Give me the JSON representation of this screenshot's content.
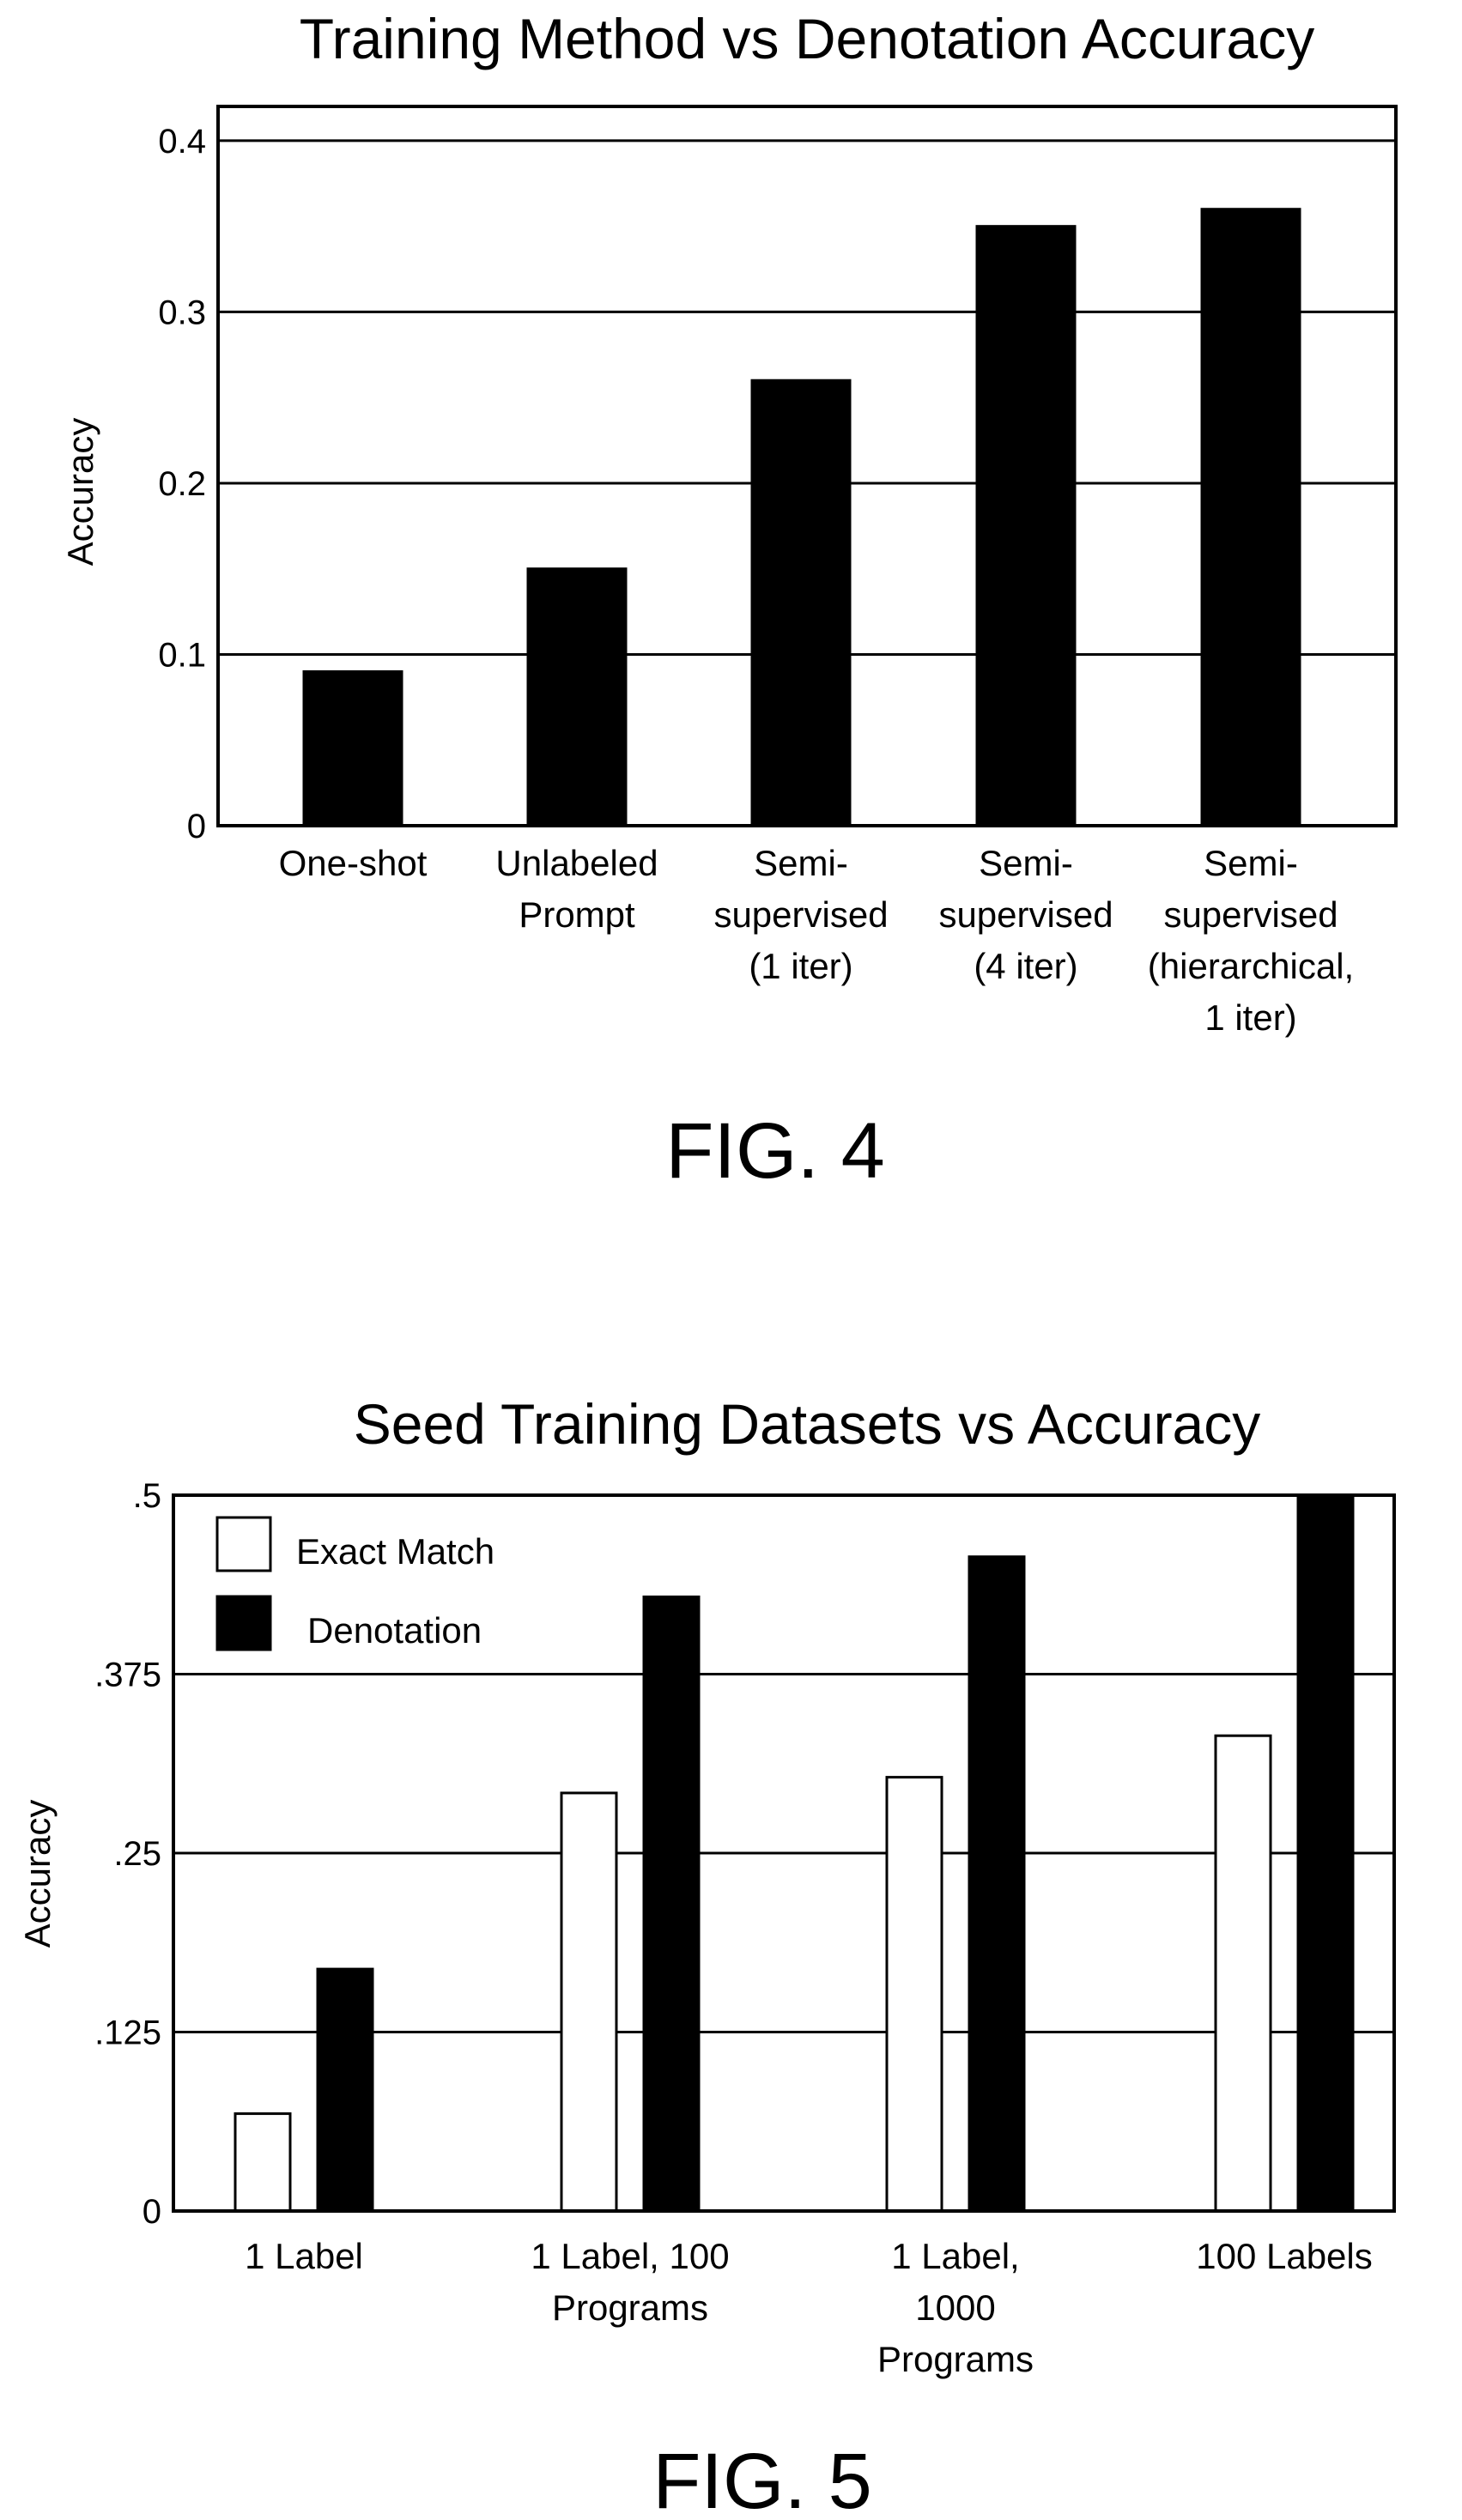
{
  "figures": [
    {
      "caption": "FIG. 4",
      "chart_data": {
        "type": "bar",
        "title": "Training Method vs Denotation Accuracy",
        "xlabel": "",
        "ylabel": "Accuracy",
        "categories": [
          [
            "One-shot"
          ],
          [
            "Unlabeled",
            "Prompt"
          ],
          [
            "Semi-",
            "supervised",
            "(1 iter)"
          ],
          [
            "Semi-",
            "supervised",
            "(4 iter)"
          ],
          [
            "Semi-",
            "supervised",
            "(hierarchical,",
            "1 iter)"
          ]
        ],
        "series": [
          {
            "values": [
              0.09,
              0.15,
              0.26,
              0.35,
              0.36
            ],
            "color": "#000000"
          }
        ],
        "ylim": [
          0,
          0.42
        ],
        "yticks": [
          0,
          0.1,
          0.2,
          0.3,
          0.4
        ],
        "ytick_labels": [
          "0",
          "0.1",
          "0.2",
          "0.3",
          "0.4"
        ],
        "grid": true,
        "legend": false
      }
    },
    {
      "caption": "FIG. 5",
      "chart_data": {
        "type": "bar",
        "title": "Seed Training Datasets vs Accuracy",
        "xlabel": "",
        "ylabel": "Accuracy",
        "categories": [
          [
            "1 Label"
          ],
          [
            "1 Label, 100",
            "Programs"
          ],
          [
            "1 Label,",
            "1000",
            "Programs"
          ],
          [
            "100 Labels"
          ]
        ],
        "series": [
          {
            "name": "Exact Match",
            "values": [
              0.068,
              0.292,
              0.303,
              0.332
            ],
            "color": "#ffffff"
          },
          {
            "name": "Denotation",
            "values": [
              0.169,
              0.429,
              0.457,
              0.5
            ],
            "color": "#000000"
          }
        ],
        "ylim": [
          0,
          0.5
        ],
        "yticks": [
          0,
          0.125,
          0.25,
          0.375,
          0.5
        ],
        "ytick_labels": [
          "0",
          ".125",
          ".25",
          ".375",
          ".5"
        ],
        "grid": true,
        "legend": "top-left"
      }
    }
  ]
}
